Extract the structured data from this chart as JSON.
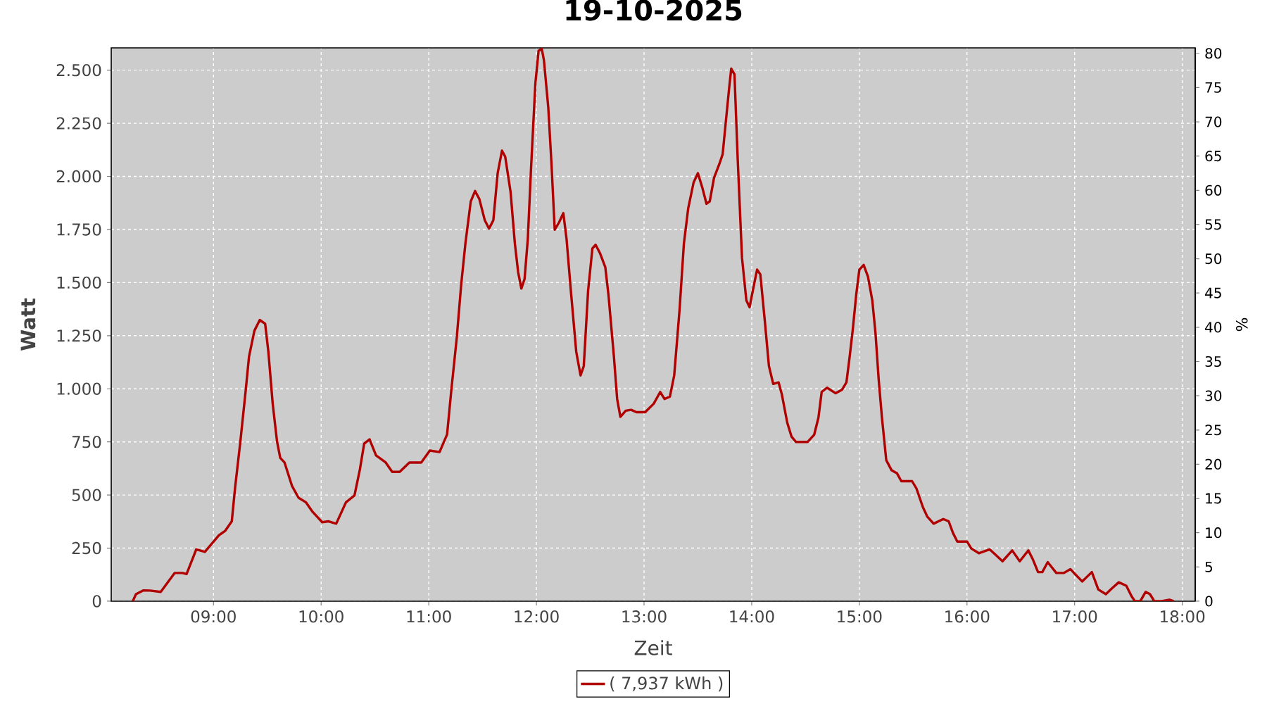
{
  "chart_data": {
    "type": "line",
    "title": "19-10-2025",
    "xlabel": "Zeit",
    "ylabel": "Watt",
    "y2label": "%",
    "x": [
      8.25,
      8.28,
      8.35,
      8.41,
      8.51,
      8.64,
      8.71,
      8.75,
      8.84,
      8.92,
      9.05,
      9.11,
      9.17,
      9.2,
      9.25,
      9.3,
      9.33,
      9.38,
      9.43,
      9.48,
      9.51,
      9.55,
      9.59,
      9.62,
      9.66,
      9.73,
      9.79,
      9.86,
      9.92,
      10.01,
      10.07,
      10.14,
      10.23,
      10.31,
      10.36,
      10.4,
      10.45,
      10.51,
      10.6,
      10.66,
      10.73,
      10.82,
      10.93,
      11.01,
      11.1,
      11.17,
      11.21,
      11.26,
      11.3,
      11.34,
      11.39,
      11.43,
      11.47,
      11.52,
      11.56,
      11.6,
      11.64,
      11.68,
      11.71,
      11.76,
      11.8,
      11.83,
      11.86,
      11.89,
      11.92,
      11.95,
      11.99,
      12.02,
      12.05,
      12.07,
      12.11,
      12.14,
      12.17,
      12.21,
      12.25,
      12.28,
      12.32,
      12.37,
      12.41,
      12.44,
      12.48,
      12.52,
      12.55,
      12.59,
      12.64,
      12.67,
      12.72,
      12.75,
      12.78,
      12.83,
      12.88,
      12.93,
      13.01,
      13.09,
      13.15,
      13.19,
      13.24,
      13.28,
      13.33,
      13.37,
      13.41,
      13.46,
      13.5,
      13.54,
      13.58,
      13.61,
      13.65,
      13.7,
      13.73,
      13.76,
      13.79,
      13.81,
      13.84,
      13.87,
      13.91,
      13.95,
      13.98,
      14.01,
      14.05,
      14.08,
      14.12,
      14.16,
      14.2,
      14.25,
      14.28,
      14.33,
      14.37,
      14.41,
      14.52,
      14.58,
      14.62,
      14.65,
      14.7,
      14.78,
      14.84,
      14.88,
      14.91,
      14.94,
      14.97,
      15.0,
      15.04,
      15.08,
      15.12,
      15.15,
      15.18,
      15.21,
      15.25,
      15.3,
      15.35,
      15.39,
      15.49,
      15.53,
      15.59,
      15.63,
      15.69,
      15.78,
      15.83,
      15.87,
      15.91,
      16.0,
      16.04,
      16.11,
      16.21,
      16.26,
      16.33,
      16.42,
      16.49,
      16.57,
      16.61,
      16.66,
      16.7,
      16.75,
      16.83,
      16.9,
      16.96,
      17.07,
      17.16,
      17.22,
      17.29,
      17.35,
      17.41,
      17.48,
      17.53,
      17.56,
      17.61,
      17.66,
      17.7,
      17.74,
      17.81,
      17.88,
      17.92
    ],
    "series": [
      {
        "name": "( 7,937 kWh )",
        "color": "#b00000",
        "values": [
          0,
          33,
          51,
          50,
          44,
          133,
          133,
          128,
          244,
          232,
          310,
          332,
          376,
          531,
          753,
          996,
          1151,
          1273,
          1324,
          1306,
          1174,
          930,
          753,
          675,
          653,
          542,
          487,
          465,
          421,
          372,
          376,
          365,
          465,
          498,
          620,
          742,
          762,
          686,
          653,
          609,
          609,
          653,
          653,
          709,
          702,
          785,
          996,
          1240,
          1484,
          1683,
          1882,
          1931,
          1893,
          1794,
          1754,
          1794,
          2015,
          2121,
          2093,
          1926,
          1683,
          1550,
          1472,
          1517,
          1705,
          2037,
          2436,
          2591,
          2600,
          2546,
          2325,
          2059,
          1749,
          1783,
          1827,
          1705,
          1461,
          1174,
          1063,
          1107,
          1461,
          1661,
          1678,
          1639,
          1572,
          1439,
          1151,
          952,
          868,
          897,
          901,
          890,
          890,
          930,
          985,
          952,
          963,
          1063,
          1373,
          1683,
          1849,
          1971,
          2015,
          1949,
          1871,
          1882,
          1993,
          2059,
          2104,
          2259,
          2414,
          2507,
          2480,
          2081,
          1616,
          1417,
          1384,
          1461,
          1561,
          1539,
          1329,
          1107,
          1023,
          1030,
          974,
          841,
          775,
          750,
          750,
          783,
          864,
          985,
          1005,
          979,
          996,
          1030,
          1151,
          1284,
          1439,
          1561,
          1583,
          1528,
          1417,
          1262,
          1041,
          864,
          664,
          616,
          602,
          565,
          565,
          531,
          443,
          399,
          365,
          387,
          376,
          321,
          281,
          281,
          248,
          226,
          244,
          221,
          188,
          239,
          188,
          239,
          199,
          137,
          137,
          184,
          133,
          133,
          151,
          93,
          137,
          55,
          33,
          62,
          89,
          73,
          22,
          0,
          0,
          44,
          33,
          0,
          0,
          7,
          0
        ]
      }
    ],
    "xlim": [
      8.05,
      18.12
    ],
    "ylim": [
      0,
      2605
    ],
    "y2lim": [
      0,
      80.8
    ],
    "xticks": [
      {
        "value": 9,
        "label": "09:00"
      },
      {
        "value": 10,
        "label": "10:00"
      },
      {
        "value": 11,
        "label": "11:00"
      },
      {
        "value": 12,
        "label": "12:00"
      },
      {
        "value": 13,
        "label": "13:00"
      },
      {
        "value": 14,
        "label": "14:00"
      },
      {
        "value": 15,
        "label": "15:00"
      },
      {
        "value": 16,
        "label": "16:00"
      },
      {
        "value": 17,
        "label": "17:00"
      },
      {
        "value": 18,
        "label": "18:00"
      }
    ],
    "yticks": [
      0,
      250,
      500,
      750,
      {
        "value": 1000,
        "label": "1.000"
      },
      {
        "value": 1250,
        "label": "1.250"
      },
      {
        "value": 1500,
        "label": "1.500"
      },
      {
        "value": 1750,
        "label": "1.750"
      },
      {
        "value": 2000,
        "label": "2.000"
      },
      {
        "value": 2250,
        "label": "2.250"
      },
      {
        "value": 2500,
        "label": "2.500"
      }
    ],
    "y2ticks": [
      0,
      5,
      10,
      15,
      20,
      25,
      30,
      35,
      40,
      45,
      50,
      55,
      60,
      65,
      70,
      75,
      80
    ],
    "grid": true,
    "legend": "bottom"
  }
}
